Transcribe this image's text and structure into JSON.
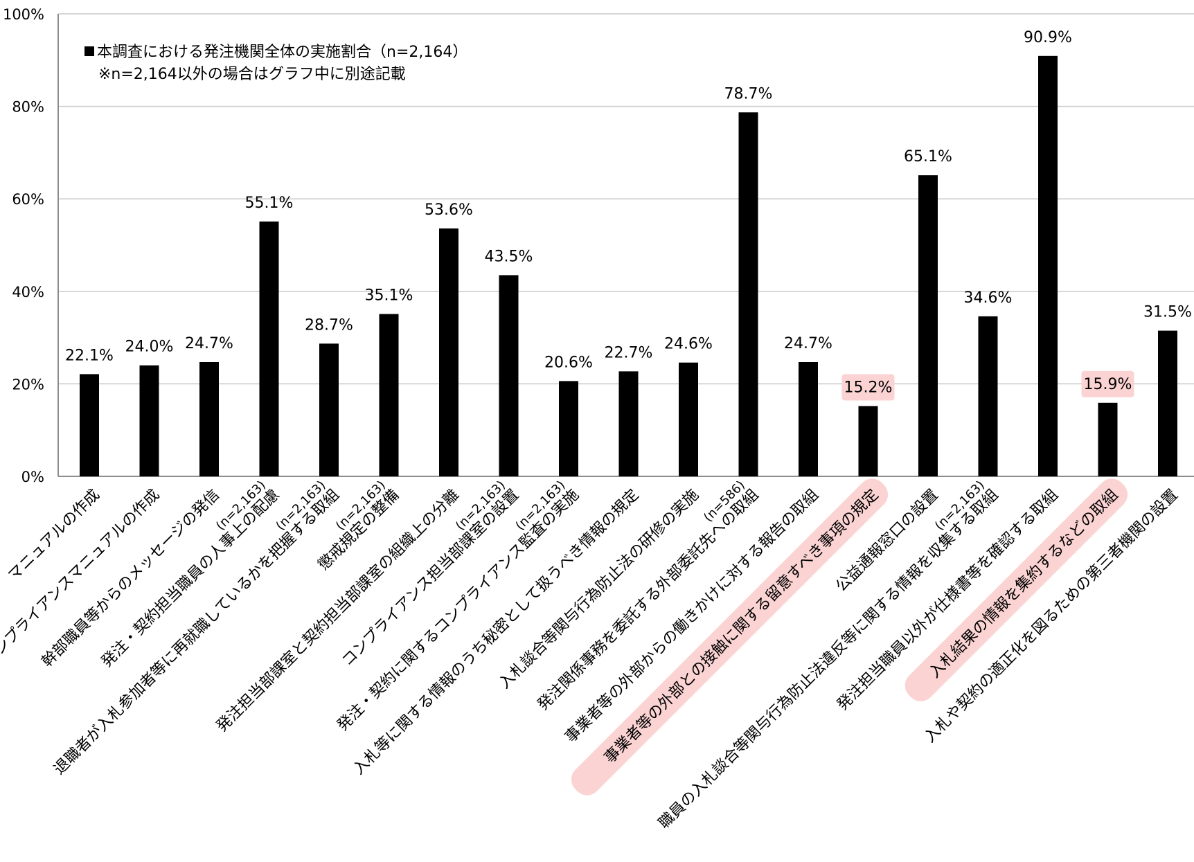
{
  "chart_data": {
    "type": "bar",
    "legend": {
      "series_label": "本調査における発注機関全体の実施割合（n=2,164）",
      "note": "※n=2,164以外の場合はグラフ中に別途記載"
    },
    "ylim": [
      0,
      100
    ],
    "y_ticks": [
      {
        "value": 0,
        "label": "0%"
      },
      {
        "value": 20,
        "label": "20%"
      },
      {
        "value": 40,
        "label": "40%"
      },
      {
        "value": 60,
        "label": "60%"
      },
      {
        "value": 80,
        "label": "80%"
      },
      {
        "value": 100,
        "label": "100%"
      }
    ],
    "grid": true,
    "bar_color": "#000000",
    "highlight_color": "#fbd3d3",
    "bars": [
      {
        "category": "マニュアルの作成",
        "n_label": "",
        "value": 22.1,
        "label": "22.1%",
        "highlight": false
      },
      {
        "category": "コンプライアンスマニュアルの作成",
        "n_label": "",
        "value": 24.0,
        "label": "24.0%",
        "highlight": false
      },
      {
        "category": "幹部職員等からのメッセージの発信",
        "n_label": "",
        "value": 24.7,
        "label": "24.7%",
        "highlight": false
      },
      {
        "category": "発注・契約担当職員の人事上の配慮",
        "n_label": "(n=2,163)",
        "value": 55.1,
        "label": "55.1%",
        "highlight": false
      },
      {
        "category": "退職者が入札参加者等に再就職しているかを把握する取組",
        "n_label": "(n=2,163)",
        "value": 28.7,
        "label": "28.7%",
        "highlight": false
      },
      {
        "category": "懲戒規定の整備",
        "n_label": "(n=2,163)",
        "value": 35.1,
        "label": "35.1%",
        "highlight": false
      },
      {
        "category": "発注担当部課室と契約担当部課室の組織上の分離",
        "n_label": "",
        "value": 53.6,
        "label": "53.6%",
        "highlight": false
      },
      {
        "category": "コンプライアンス担当部課室の設置",
        "n_label": "(n=2,163)",
        "value": 43.5,
        "label": "43.5%",
        "highlight": false
      },
      {
        "category": "発注・契約に関するコンプライアンス監査の実施",
        "n_label": "(n=2,163)",
        "value": 20.6,
        "label": "20.6%",
        "highlight": false
      },
      {
        "category": "入札等に関する情報のうち秘密として扱うべき情報の規定",
        "n_label": "",
        "value": 22.7,
        "label": "22.7%",
        "highlight": false
      },
      {
        "category": "入札談合等関与行為防止法の研修の実施",
        "n_label": "",
        "value": 24.6,
        "label": "24.6%",
        "highlight": false
      },
      {
        "category": "発注関係事務を委託する外部委託先への取組",
        "n_label": "(n=586)",
        "value": 78.7,
        "label": "78.7%",
        "highlight": false
      },
      {
        "category": "事業者等の外部からの働きかけに対する報告の取組",
        "n_label": "",
        "value": 24.7,
        "label": "24.7%",
        "highlight": false
      },
      {
        "category": "事業者等の外部との接触に関する留意すべき事項の規定",
        "n_label": "",
        "value": 15.2,
        "label": "15.2%",
        "highlight": true
      },
      {
        "category": "公益通報窓口の設置",
        "n_label": "",
        "value": 65.1,
        "label": "65.1%",
        "highlight": false
      },
      {
        "category": "職員の入札談合等関与行為防止法違反等に関する情報を収集する取組",
        "n_label": "(n=2,163)",
        "value": 34.6,
        "label": "34.6%",
        "highlight": false
      },
      {
        "category": "発注担当職員以外が仕様書等を確認する取組",
        "n_label": "",
        "value": 90.9,
        "label": "90.9%",
        "highlight": false
      },
      {
        "category": "入札結果の情報を集約するなどの取組",
        "n_label": "",
        "value": 15.9,
        "label": "15.9%",
        "highlight": true
      },
      {
        "category": "入札や契約の適正化を図るための第三者機関の設置",
        "n_label": "",
        "value": 31.5,
        "label": "31.5%",
        "highlight": false
      }
    ]
  }
}
